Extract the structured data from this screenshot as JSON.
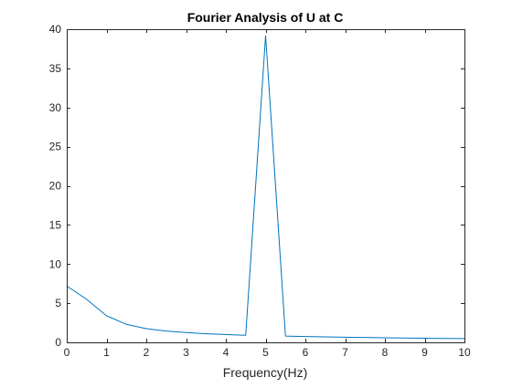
{
  "chart_data": {
    "type": "line",
    "title": "Fourier Analysis of U at C",
    "xlabel": "Frequency(Hz)",
    "ylabel": "",
    "xlim": [
      0,
      10
    ],
    "ylim": [
      0,
      40
    ],
    "xticks": [
      0,
      1,
      2,
      3,
      4,
      5,
      6,
      7,
      8,
      9,
      10
    ],
    "yticks": [
      0,
      5,
      10,
      15,
      20,
      25,
      30,
      35,
      40
    ],
    "grid": false,
    "legend": "none",
    "series": [
      {
        "color": "#0072BD",
        "x": [
          0,
          0.5,
          1,
          1.5,
          2,
          2.5,
          3,
          3.5,
          4,
          4.5,
          5,
          5.5,
          6,
          6.5,
          7,
          7.5,
          8,
          8.5,
          9,
          9.5,
          10
        ],
        "y": [
          7.2,
          5.5,
          3.4,
          2.3,
          1.75,
          1.45,
          1.25,
          1.1,
          1.0,
          0.9,
          39.2,
          0.8,
          0.75,
          0.7,
          0.65,
          0.62,
          0.58,
          0.55,
          0.52,
          0.5,
          0.48
        ]
      }
    ]
  }
}
